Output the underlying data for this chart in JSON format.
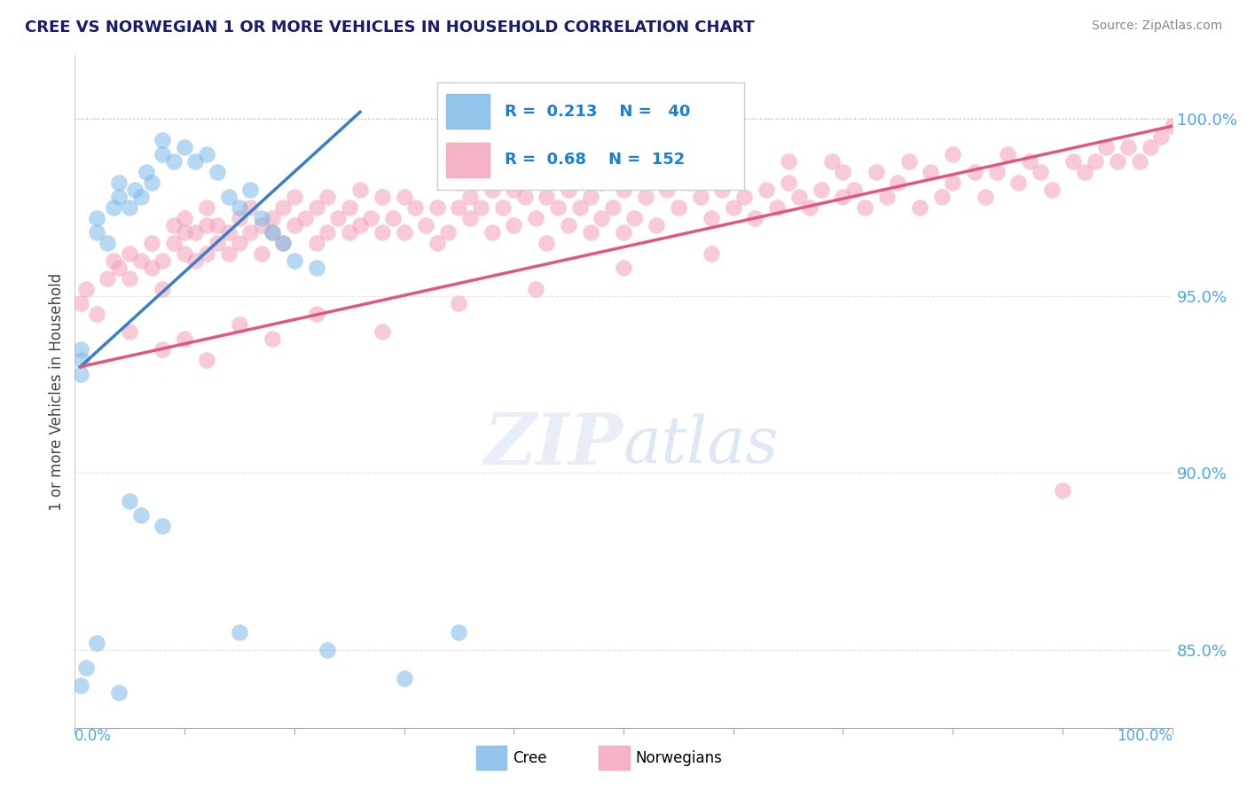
{
  "title": "CREE VS NORWEGIAN 1 OR MORE VEHICLES IN HOUSEHOLD CORRELATION CHART",
  "source": "Source: ZipAtlas.com",
  "ylabel": "1 or more Vehicles in Household",
  "ytick_labels": [
    "85.0%",
    "90.0%",
    "95.0%",
    "100.0%"
  ],
  "ytick_values": [
    0.85,
    0.9,
    0.95,
    1.0
  ],
  "xlim": [
    0.0,
    1.0
  ],
  "ylim": [
    0.828,
    1.018
  ],
  "cree_R": 0.213,
  "cree_N": 40,
  "norw_R": 0.68,
  "norw_N": 152,
  "cree_color": "#7ab8e8",
  "norw_color": "#f4a0b8",
  "cree_line_color": "#3a7ec8",
  "norw_line_color": "#e05878",
  "cree_line_x": [
    0.005,
    0.26
  ],
  "cree_line_y": [
    0.93,
    1.002
  ],
  "norw_line_x": [
    0.005,
    1.0
  ],
  "norw_line_y": [
    0.93,
    0.998
  ],
  "cree_points": [
    [
      0.005,
      0.928
    ],
    [
      0.005,
      0.935
    ],
    [
      0.006,
      0.932
    ],
    [
      0.02,
      0.968
    ],
    [
      0.02,
      0.972
    ],
    [
      0.03,
      0.965
    ],
    [
      0.035,
      0.975
    ],
    [
      0.04,
      0.978
    ],
    [
      0.04,
      0.982
    ],
    [
      0.05,
      0.975
    ],
    [
      0.055,
      0.98
    ],
    [
      0.06,
      0.978
    ],
    [
      0.065,
      0.985
    ],
    [
      0.07,
      0.982
    ],
    [
      0.08,
      0.99
    ],
    [
      0.08,
      0.994
    ],
    [
      0.09,
      0.988
    ],
    [
      0.1,
      0.992
    ],
    [
      0.11,
      0.988
    ],
    [
      0.12,
      0.99
    ],
    [
      0.13,
      0.985
    ],
    [
      0.14,
      0.978
    ],
    [
      0.15,
      0.975
    ],
    [
      0.16,
      0.98
    ],
    [
      0.17,
      0.972
    ],
    [
      0.18,
      0.968
    ],
    [
      0.19,
      0.965
    ],
    [
      0.2,
      0.96
    ],
    [
      0.22,
      0.958
    ],
    [
      0.005,
      0.84
    ],
    [
      0.01,
      0.845
    ],
    [
      0.02,
      0.852
    ],
    [
      0.04,
      0.838
    ],
    [
      0.05,
      0.892
    ],
    [
      0.06,
      0.888
    ],
    [
      0.08,
      0.885
    ],
    [
      0.15,
      0.855
    ],
    [
      0.23,
      0.85
    ],
    [
      0.3,
      0.842
    ],
    [
      0.35,
      0.855
    ]
  ],
  "norw_points": [
    [
      0.005,
      0.948
    ],
    [
      0.01,
      0.952
    ],
    [
      0.02,
      0.945
    ],
    [
      0.03,
      0.955
    ],
    [
      0.035,
      0.96
    ],
    [
      0.04,
      0.958
    ],
    [
      0.05,
      0.962
    ],
    [
      0.05,
      0.955
    ],
    [
      0.06,
      0.96
    ],
    [
      0.07,
      0.958
    ],
    [
      0.07,
      0.965
    ],
    [
      0.08,
      0.952
    ],
    [
      0.08,
      0.96
    ],
    [
      0.09,
      0.965
    ],
    [
      0.09,
      0.97
    ],
    [
      0.1,
      0.962
    ],
    [
      0.1,
      0.968
    ],
    [
      0.1,
      0.972
    ],
    [
      0.11,
      0.96
    ],
    [
      0.11,
      0.968
    ],
    [
      0.12,
      0.962
    ],
    [
      0.12,
      0.97
    ],
    [
      0.12,
      0.975
    ],
    [
      0.13,
      0.965
    ],
    [
      0.13,
      0.97
    ],
    [
      0.14,
      0.962
    ],
    [
      0.14,
      0.968
    ],
    [
      0.15,
      0.965
    ],
    [
      0.15,
      0.972
    ],
    [
      0.16,
      0.968
    ],
    [
      0.16,
      0.975
    ],
    [
      0.17,
      0.962
    ],
    [
      0.17,
      0.97
    ],
    [
      0.18,
      0.968
    ],
    [
      0.18,
      0.972
    ],
    [
      0.19,
      0.965
    ],
    [
      0.19,
      0.975
    ],
    [
      0.2,
      0.97
    ],
    [
      0.2,
      0.978
    ],
    [
      0.21,
      0.972
    ],
    [
      0.22,
      0.965
    ],
    [
      0.22,
      0.975
    ],
    [
      0.23,
      0.968
    ],
    [
      0.23,
      0.978
    ],
    [
      0.24,
      0.972
    ],
    [
      0.25,
      0.968
    ],
    [
      0.25,
      0.975
    ],
    [
      0.26,
      0.97
    ],
    [
      0.26,
      0.98
    ],
    [
      0.27,
      0.972
    ],
    [
      0.28,
      0.968
    ],
    [
      0.28,
      0.978
    ],
    [
      0.29,
      0.972
    ],
    [
      0.3,
      0.968
    ],
    [
      0.3,
      0.978
    ],
    [
      0.31,
      0.975
    ],
    [
      0.32,
      0.97
    ],
    [
      0.33,
      0.965
    ],
    [
      0.33,
      0.975
    ],
    [
      0.34,
      0.968
    ],
    [
      0.35,
      0.975
    ],
    [
      0.35,
      0.982
    ],
    [
      0.36,
      0.972
    ],
    [
      0.36,
      0.978
    ],
    [
      0.37,
      0.975
    ],
    [
      0.38,
      0.968
    ],
    [
      0.38,
      0.98
    ],
    [
      0.39,
      0.975
    ],
    [
      0.4,
      0.97
    ],
    [
      0.4,
      0.98
    ],
    [
      0.4,
      0.985
    ],
    [
      0.41,
      0.978
    ],
    [
      0.42,
      0.972
    ],
    [
      0.43,
      0.965
    ],
    [
      0.43,
      0.978
    ],
    [
      0.44,
      0.975
    ],
    [
      0.45,
      0.97
    ],
    [
      0.45,
      0.98
    ],
    [
      0.46,
      0.975
    ],
    [
      0.47,
      0.968
    ],
    [
      0.47,
      0.978
    ],
    [
      0.48,
      0.972
    ],
    [
      0.48,
      0.982
    ],
    [
      0.49,
      0.975
    ],
    [
      0.5,
      0.968
    ],
    [
      0.5,
      0.98
    ],
    [
      0.51,
      0.972
    ],
    [
      0.52,
      0.978
    ],
    [
      0.53,
      0.97
    ],
    [
      0.54,
      0.98
    ],
    [
      0.55,
      0.975
    ],
    [
      0.56,
      0.982
    ],
    [
      0.57,
      0.978
    ],
    [
      0.58,
      0.972
    ],
    [
      0.59,
      0.98
    ],
    [
      0.6,
      0.975
    ],
    [
      0.6,
      0.985
    ],
    [
      0.61,
      0.978
    ],
    [
      0.62,
      0.972
    ],
    [
      0.63,
      0.98
    ],
    [
      0.64,
      0.975
    ],
    [
      0.65,
      0.982
    ],
    [
      0.65,
      0.988
    ],
    [
      0.66,
      0.978
    ],
    [
      0.67,
      0.975
    ],
    [
      0.68,
      0.98
    ],
    [
      0.69,
      0.988
    ],
    [
      0.7,
      0.978
    ],
    [
      0.7,
      0.985
    ],
    [
      0.71,
      0.98
    ],
    [
      0.72,
      0.975
    ],
    [
      0.73,
      0.985
    ],
    [
      0.74,
      0.978
    ],
    [
      0.75,
      0.982
    ],
    [
      0.76,
      0.988
    ],
    [
      0.77,
      0.975
    ],
    [
      0.78,
      0.985
    ],
    [
      0.79,
      0.978
    ],
    [
      0.8,
      0.982
    ],
    [
      0.8,
      0.99
    ],
    [
      0.82,
      0.985
    ],
    [
      0.83,
      0.978
    ],
    [
      0.84,
      0.985
    ],
    [
      0.85,
      0.99
    ],
    [
      0.86,
      0.982
    ],
    [
      0.87,
      0.988
    ],
    [
      0.88,
      0.985
    ],
    [
      0.89,
      0.98
    ],
    [
      0.9,
      0.895
    ],
    [
      0.91,
      0.988
    ],
    [
      0.92,
      0.985
    ],
    [
      0.93,
      0.988
    ],
    [
      0.94,
      0.992
    ],
    [
      0.95,
      0.988
    ],
    [
      0.96,
      0.992
    ],
    [
      0.97,
      0.988
    ],
    [
      0.98,
      0.992
    ],
    [
      0.99,
      0.995
    ],
    [
      1.0,
      0.998
    ],
    [
      0.05,
      0.94
    ],
    [
      0.08,
      0.935
    ],
    [
      0.1,
      0.938
    ],
    [
      0.12,
      0.932
    ],
    [
      0.15,
      0.942
    ],
    [
      0.18,
      0.938
    ],
    [
      0.22,
      0.945
    ],
    [
      0.28,
      0.94
    ],
    [
      0.35,
      0.948
    ],
    [
      0.42,
      0.952
    ],
    [
      0.5,
      0.958
    ],
    [
      0.58,
      0.962
    ]
  ]
}
